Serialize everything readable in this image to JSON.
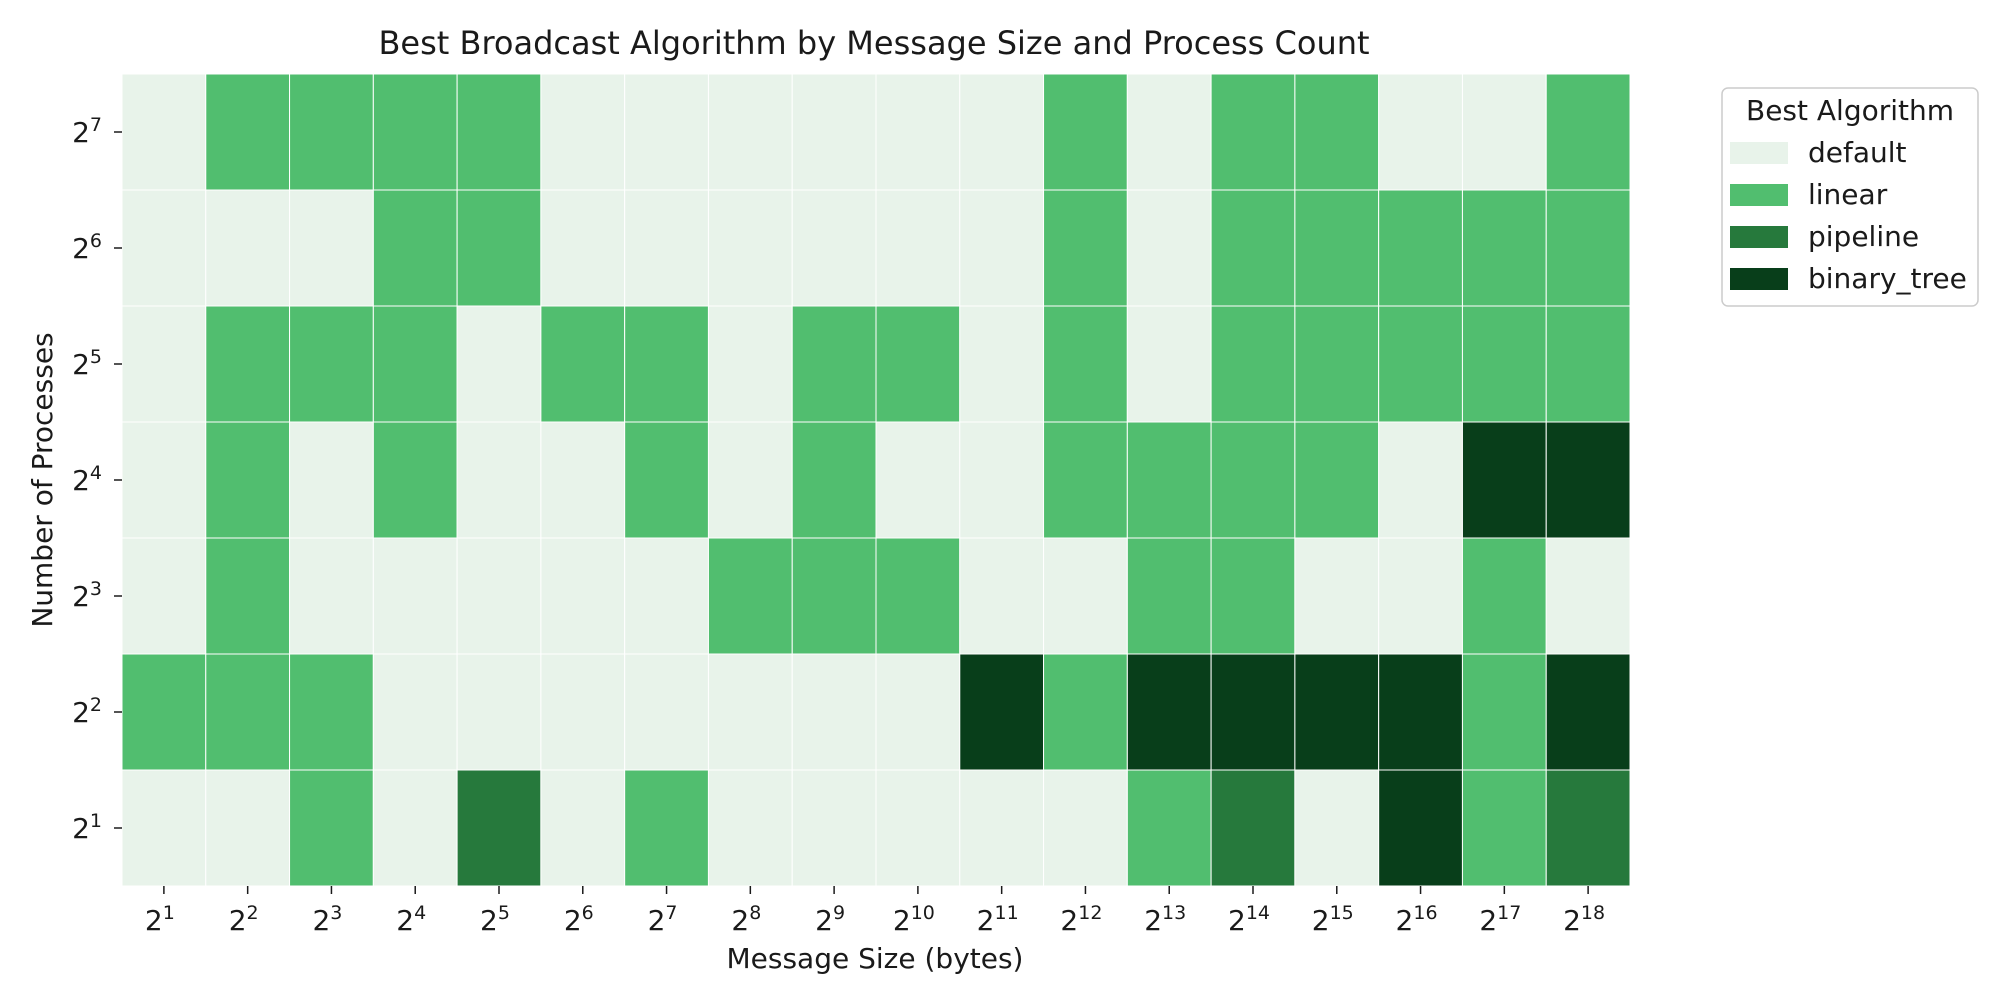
{
  "chart_data": {
    "type": "heatmap",
    "title": "Best Broadcast Algorithm by Message Size and Process Count",
    "xlabel": "Message Size (bytes)",
    "ylabel": "Number of Processes",
    "x_exponents": [
      1,
      2,
      3,
      4,
      5,
      6,
      7,
      8,
      9,
      10,
      11,
      12,
      13,
      14,
      15,
      16,
      17,
      18
    ],
    "y_exponents": [
      7,
      6,
      5,
      4,
      3,
      2,
      1
    ],
    "tick_base": "2",
    "legend": {
      "title": "Best Algorithm",
      "placement": "outside-right-top",
      "items": [
        {
          "label": "default",
          "color": "#e8f3ea"
        },
        {
          "label": "linear",
          "color": "#51be6f"
        },
        {
          "label": "pipeline",
          "color": "#26793c"
        },
        {
          "label": "binary_tree",
          "color": "#083e1a"
        }
      ]
    },
    "cell_note": "rows ordered top (2^7) to bottom (2^1); values are legend indices: 0=default, 1=linear, 2=pipeline, 3=binary_tree",
    "cells": [
      [
        0,
        1,
        1,
        1,
        1,
        0,
        0,
        0,
        0,
        0,
        0,
        1,
        0,
        1,
        1,
        0,
        0,
        1
      ],
      [
        0,
        0,
        0,
        1,
        1,
        0,
        0,
        0,
        0,
        0,
        0,
        1,
        0,
        1,
        1,
        1,
        1,
        1
      ],
      [
        0,
        1,
        1,
        1,
        0,
        1,
        1,
        0,
        1,
        1,
        0,
        1,
        0,
        1,
        1,
        1,
        1,
        1
      ],
      [
        0,
        1,
        0,
        1,
        0,
        0,
        1,
        0,
        1,
        0,
        0,
        1,
        1,
        1,
        1,
        0,
        3,
        3
      ],
      [
        0,
        1,
        0,
        0,
        0,
        0,
        0,
        1,
        1,
        1,
        0,
        0,
        1,
        1,
        0,
        0,
        1,
        0
      ],
      [
        1,
        1,
        1,
        0,
        0,
        0,
        0,
        0,
        0,
        0,
        3,
        1,
        3,
        3,
        3,
        3,
        1,
        3
      ],
      [
        0,
        0,
        1,
        0,
        2,
        0,
        1,
        0,
        0,
        0,
        0,
        0,
        1,
        2,
        0,
        3,
        1,
        2
      ]
    ]
  }
}
